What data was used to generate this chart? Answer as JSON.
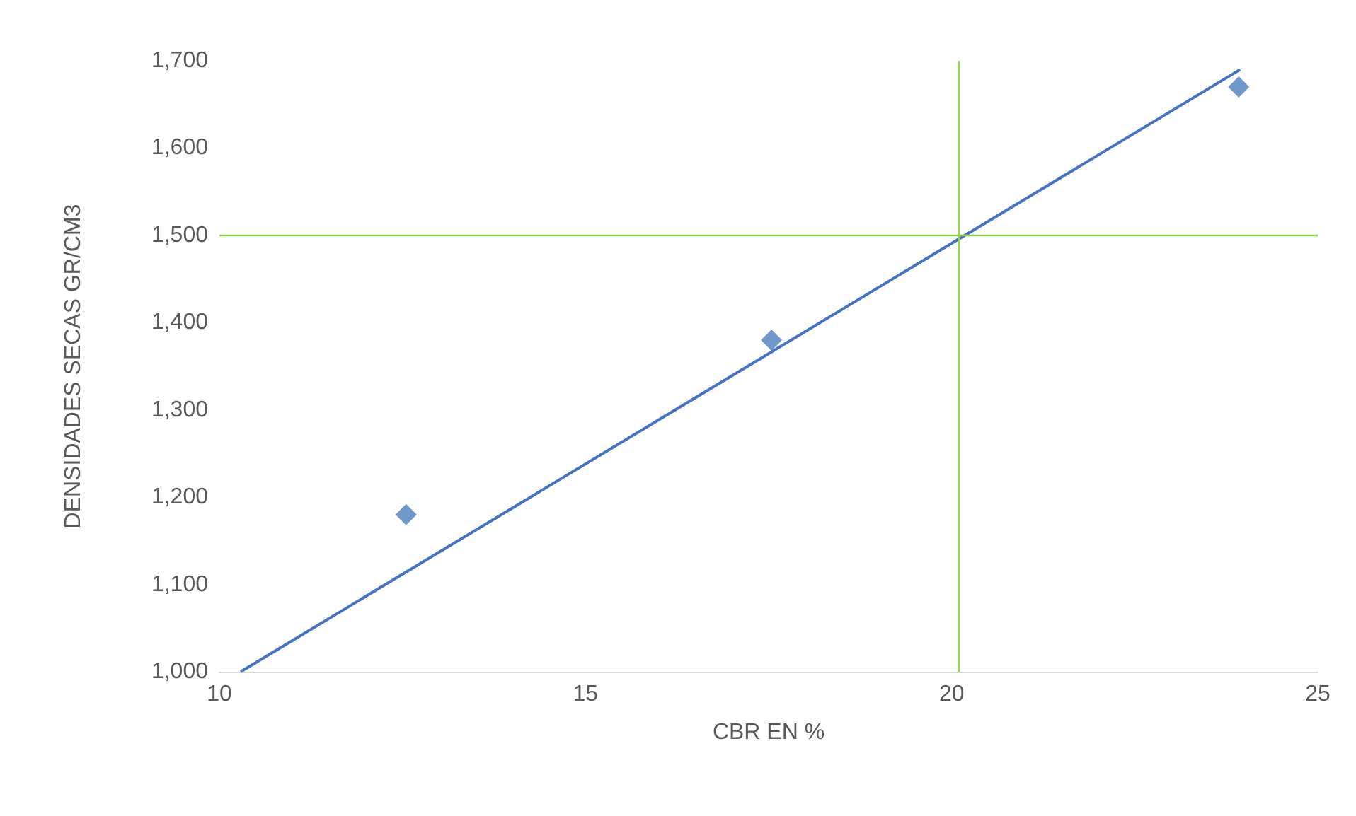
{
  "chart_data": {
    "type": "scatter",
    "xlabel": "CBR EN %",
    "ylabel": "DENSIDADES SECAS GR/CM3",
    "xlim": [
      10,
      25
    ],
    "xticks": [
      10,
      15,
      20,
      25
    ],
    "ylim": [
      1000,
      1700
    ],
    "yticks": [
      {
        "value": 1000,
        "label": "1,000"
      },
      {
        "value": 1100,
        "label": "1,100"
      },
      {
        "value": 1200,
        "label": "1,200"
      },
      {
        "value": 1300,
        "label": "1,300"
      },
      {
        "value": 1400,
        "label": "1,400"
      },
      {
        "value": 1500,
        "label": "1,500"
      },
      {
        "value": 1600,
        "label": "1,600"
      },
      {
        "value": 1700,
        "label": "1,700"
      }
    ],
    "series": [
      {
        "color": "#4a7ebb",
        "x": [
          12.55,
          17.54,
          23.92
        ],
        "values": [
          1180,
          1380,
          1670
        ]
      },
      {
        "type": "line",
        "marker": "none",
        "color": "#4472c4",
        "x": [
          10.29,
          23.94
        ],
        "values": [
          1000,
          1690
        ]
      }
    ],
    "ref_lines": [
      {
        "axis": "x",
        "value": 20.1,
        "color": "#92d050"
      },
      {
        "axis": "y",
        "value": 1500,
        "color": "#92d050"
      }
    ],
    "marker": "diamond",
    "grid": false
  }
}
